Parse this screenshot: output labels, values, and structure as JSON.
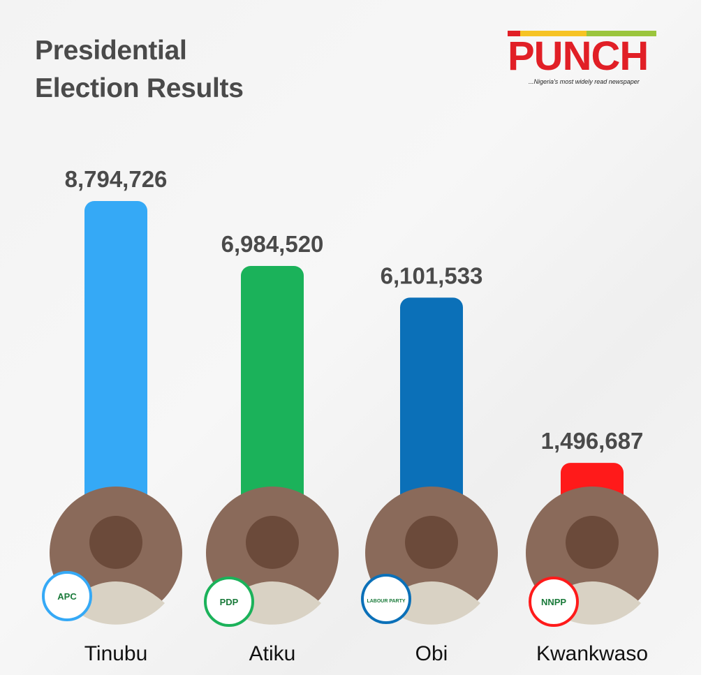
{
  "title_line1": "Presidential",
  "title_line2": "Election Results",
  "logo": {
    "word": "PUNCH",
    "tagline": "...Nigeria's most widely read newspaper"
  },
  "colors": {
    "tinubu": "#35a9f6",
    "atiku": "#1bb25a",
    "obi": "#0b70b8",
    "kwankwaso": "#ff1a1a"
  },
  "chart_data": {
    "type": "bar",
    "title": "Presidential Election Results",
    "categories": [
      "Tinubu",
      "Atiku",
      "Obi",
      "Kwankwaso"
    ],
    "values": [
      8794726,
      6984520,
      6101533,
      1496687
    ],
    "value_labels": [
      "8,794,726",
      "6,984,520",
      "6,101,533",
      "1,496,687"
    ],
    "party_badges": [
      "APC",
      "PDP",
      "LABOUR PARTY",
      "NNPP"
    ],
    "colors": [
      "#35a9f6",
      "#1bb25a",
      "#0b70b8",
      "#ff1a1a"
    ],
    "grid": false,
    "legend": "none"
  }
}
